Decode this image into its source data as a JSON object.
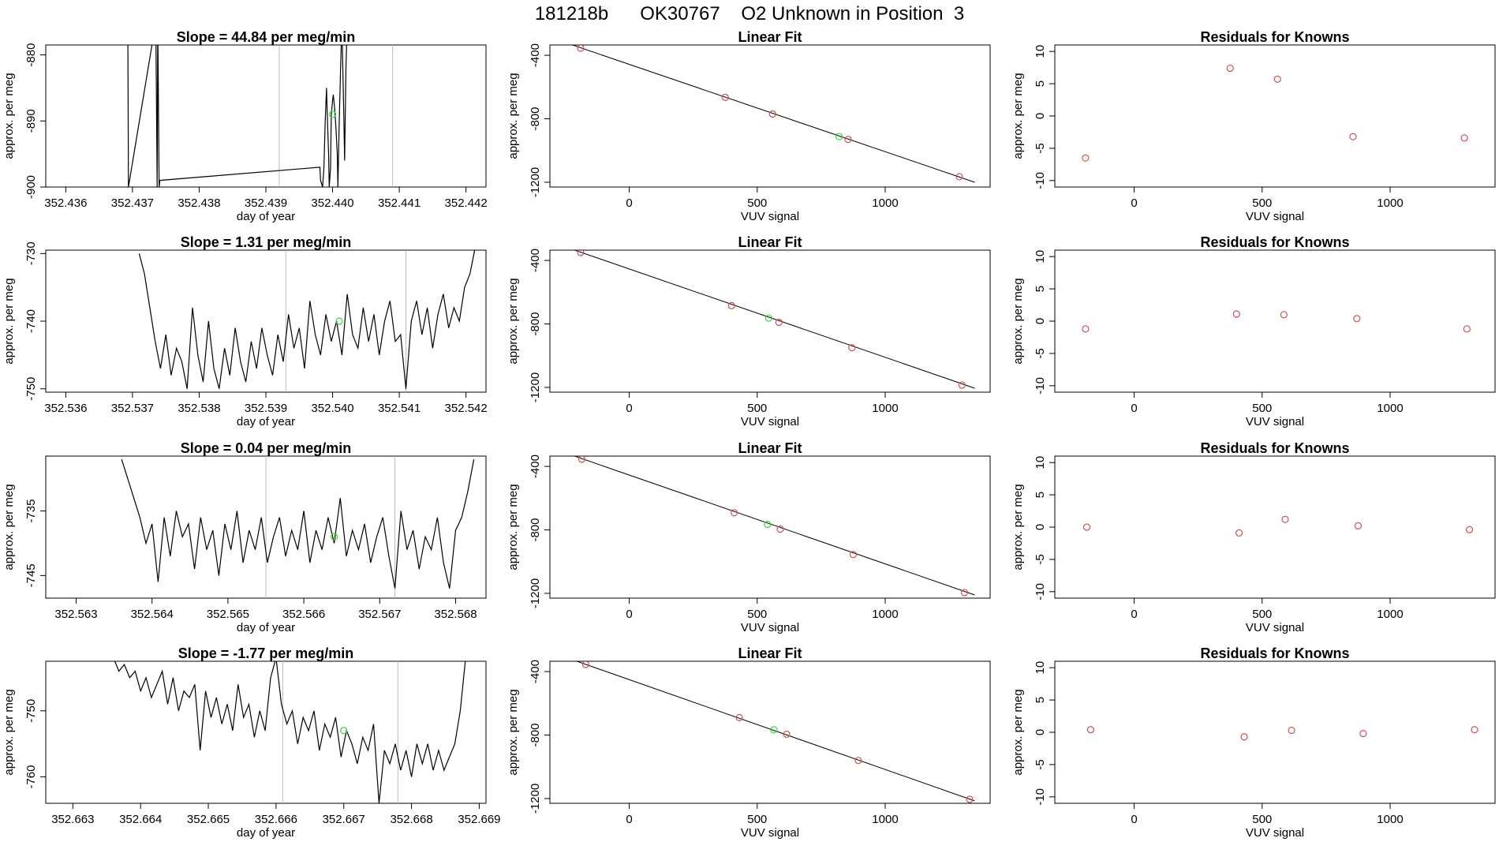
{
  "page": {
    "title": "181218b      OK30767    O2 Unknown in Position  3"
  },
  "colors": {
    "known_point": "#d05050",
    "unknown_point": "#33dd33",
    "line": "#000000",
    "reference_line": "#bbbbbb"
  },
  "chart_data": [
    {
      "type": "line",
      "title": "Slope =  44.84  per meg/min",
      "xlabel": "day of year",
      "ylabel": "approx. per meg",
      "xlim": [
        352.4357,
        352.4423
      ],
      "ylim": [
        -900,
        -878.5
      ],
      "xticks": [
        "352.436",
        "352.437",
        "352.438",
        "352.439",
        "352.440",
        "352.441",
        "352.442"
      ],
      "yticks": [
        "-880",
        "-890",
        "-900"
      ],
      "reference_lines_x": [
        352.4392,
        352.4409
      ],
      "unknown_point": {
        "x": 352.44,
        "y": -889
      },
      "series": [
        {
          "x": [
            352.43693,
            352.43694,
            352.43735,
            352.43737,
            352.43738,
            352.4374,
            352.43741,
            352.43981,
            352.43982,
            352.43985,
            352.43987,
            352.43989,
            352.43991,
            352.43992,
            352.43994,
            352.43995,
            352.43997,
            352.43998,
            352.44,
            352.44001,
            352.44003,
            352.44005,
            352.44007,
            352.44008,
            352.4401,
            352.44012,
            352.44014,
            352.44015,
            352.44017,
            352.44018,
            352.4402,
            352.44022
          ],
          "y": [
            -875,
            -900,
            -875,
            -900,
            -875,
            -900,
            -899,
            -897,
            -899,
            -900,
            -897,
            -890,
            -885,
            -889,
            -895,
            -900,
            -897,
            -889,
            -887,
            -886,
            -888,
            -891,
            -895,
            -900,
            -890,
            -882,
            -875,
            -880,
            -890,
            -896,
            -882,
            -875
          ]
        }
      ]
    },
    {
      "type": "scatter",
      "title": "Linear Fit",
      "xlabel": "VUV signal",
      "ylabel": "approx. per meg",
      "xlim": [
        -310,
        1410
      ],
      "ylim": [
        -1230,
        -335
      ],
      "xticks": [
        "0",
        "500",
        "1000"
      ],
      "yticks": [
        "-400",
        "-800",
        "-1200"
      ],
      "fit_line": {
        "x": [
          -240,
          1350
        ],
        "y": [
          -325,
          -1200
        ]
      },
      "points": {
        "x": [
          -190,
          375,
          560,
          855,
          1290
        ],
        "y": [
          -355,
          -665,
          -770,
          -930,
          -1165
        ]
      },
      "unknown_point": {
        "x": 820,
        "y": -912
      }
    },
    {
      "type": "scatter",
      "title": "Residuals for Knowns",
      "xlabel": "VUV signal",
      "ylabel": "approx. per meg",
      "xlim": [
        -310,
        1410
      ],
      "ylim": [
        -11,
        11
      ],
      "xticks": [
        "0",
        "500",
        "1000"
      ],
      "yticks": [
        "10",
        "5",
        "0",
        "-5",
        "-10"
      ],
      "points": {
        "x": [
          -190,
          375,
          560,
          855,
          1290
        ],
        "y": [
          -6.5,
          7.4,
          5.7,
          -3.2,
          -3.4
        ]
      }
    },
    {
      "type": "line",
      "title": "Slope =  1.31  per meg/min",
      "xlabel": "day of year",
      "ylabel": "approx. per meg",
      "xlim": [
        352.5357,
        352.5423
      ],
      "ylim": [
        -750.5,
        -729.5
      ],
      "xticks": [
        "352.536",
        "352.537",
        "352.538",
        "352.539",
        "352.540",
        "352.541",
        "352.542"
      ],
      "yticks": [
        "-730",
        "-740",
        "-750"
      ],
      "reference_lines_x": [
        352.5393,
        352.5411
      ],
      "unknown_point": {
        "x": 352.5401,
        "y": -740
      },
      "series": [
        {
          "x": [
            352.5371,
            352.53718,
            352.53726,
            352.53734,
            352.53742,
            352.5375,
            352.53758,
            352.53766,
            352.53774,
            352.53782,
            352.5379,
            352.53798,
            352.53806,
            352.53814,
            352.53822,
            352.5383,
            352.53838,
            352.53846,
            352.53854,
            352.53862,
            352.5387,
            352.53878,
            352.53886,
            352.53894,
            352.53902,
            352.5391,
            352.53918,
            352.53926,
            352.53934,
            352.53942,
            352.5395,
            352.53958,
            352.53966,
            352.53974,
            352.53982,
            352.5399,
            352.53998,
            352.54006,
            352.54014,
            352.54022,
            352.5403,
            352.54038,
            352.54046,
            352.54054,
            352.54062,
            352.5407,
            352.54078,
            352.54086,
            352.54094,
            352.54102,
            352.5411,
            352.54118,
            352.54126,
            352.54134,
            352.54142,
            352.5415,
            352.54158,
            352.54166,
            352.54174,
            352.54182,
            352.5419,
            352.54198,
            352.54206,
            352.54214
          ],
          "y": [
            -730,
            -733,
            -738,
            -743,
            -747,
            -742,
            -748,
            -744,
            -746,
            -750,
            -738,
            -745,
            -749,
            -740,
            -747,
            -750,
            -744,
            -748,
            -741,
            -746,
            -749,
            -743,
            -747,
            -741,
            -745,
            -748,
            -742,
            -746,
            -739,
            -744,
            -741,
            -747,
            -737,
            -742,
            -745,
            -739,
            -743,
            -740,
            -745,
            -736,
            -742,
            -744,
            -738,
            -743,
            -739,
            -745,
            -740,
            -737,
            -743,
            -742,
            -750,
            -740,
            -737,
            -742,
            -738,
            -744,
            -739,
            -736,
            -741,
            -738,
            -740,
            -735,
            -733,
            -729
          ]
        }
      ]
    },
    {
      "type": "scatter",
      "title": "Linear Fit",
      "xlabel": "VUV signal",
      "ylabel": "approx. per meg",
      "xlim": [
        -310,
        1410
      ],
      "ylim": [
        -1230,
        -335
      ],
      "xticks": [
        "0",
        "500",
        "1000"
      ],
      "yticks": [
        "-400",
        "-800",
        "-1200"
      ],
      "fit_line": {
        "x": [
          -240,
          1350
        ],
        "y": [
          -320,
          -1205
        ]
      },
      "points": {
        "x": [
          -190,
          400,
          585,
          870,
          1300
        ],
        "y": [
          -350,
          -685,
          -790,
          -950,
          -1185
        ]
      },
      "unknown_point": {
        "x": 545,
        "y": -763
      }
    },
    {
      "type": "scatter",
      "title": "Residuals for Knowns",
      "xlabel": "VUV signal",
      "ylabel": "approx. per meg",
      "xlim": [
        -310,
        1410
      ],
      "ylim": [
        -11,
        11
      ],
      "xticks": [
        "0",
        "500",
        "1000"
      ],
      "yticks": [
        "10",
        "5",
        "0",
        "-5",
        "-10"
      ],
      "points": {
        "x": [
          -190,
          400,
          585,
          870,
          1300
        ],
        "y": [
          -1.2,
          1.1,
          1.0,
          0.4,
          -1.2
        ]
      }
    },
    {
      "type": "line",
      "title": "Slope =  0.04  per meg/min",
      "xlabel": "day of year",
      "ylabel": "approx. per meg",
      "xlim": [
        352.5626,
        352.5684
      ],
      "ylim": [
        -748.5,
        -726.5
      ],
      "xticks": [
        "352.563",
        "352.564",
        "352.565",
        "352.566",
        "352.567",
        "352.568"
      ],
      "yticks": [
        "-735",
        "-745"
      ],
      "reference_lines_x": [
        352.5655,
        352.5672
      ],
      "unknown_point": {
        "x": 352.5664,
        "y": -739
      },
      "series": [
        {
          "x": [
            352.5636,
            352.56368,
            352.56376,
            352.56384,
            352.56392,
            352.564,
            352.56408,
            352.56416,
            352.56424,
            352.56432,
            352.5644,
            352.56448,
            352.56456,
            352.56464,
            352.56472,
            352.5648,
            352.56488,
            352.56496,
            352.56504,
            352.56512,
            352.5652,
            352.56528,
            352.56536,
            352.56544,
            352.56552,
            352.5656,
            352.56568,
            352.56576,
            352.56584,
            352.56592,
            352.566,
            352.56608,
            352.56616,
            352.56624,
            352.56632,
            352.5664,
            352.56648,
            352.56656,
            352.56664,
            352.56672,
            352.5668,
            352.56688,
            352.56696,
            352.56704,
            352.56712,
            352.5672,
            352.56728,
            352.56736,
            352.56744,
            352.56752,
            352.5676,
            352.56768,
            352.56776,
            352.56784,
            352.56792,
            352.568,
            352.56808,
            352.56816,
            352.56824
          ],
          "y": [
            -727,
            -730,
            -733,
            -736,
            -740,
            -737,
            -746,
            -736,
            -742,
            -735,
            -739,
            -737,
            -744,
            -736,
            -741,
            -738,
            -745,
            -737,
            -741,
            -735,
            -743,
            -738,
            -741,
            -736,
            -743,
            -739,
            -736,
            -742,
            -738,
            -741,
            -735,
            -743,
            -738,
            -741,
            -736,
            -740,
            -733,
            -742,
            -738,
            -741,
            -737,
            -743,
            -739,
            -736,
            -742,
            -747,
            -735,
            -741,
            -738,
            -744,
            -739,
            -741,
            -736,
            -743,
            -747,
            -738,
            -736,
            -732,
            -727
          ]
        }
      ]
    },
    {
      "type": "scatter",
      "title": "Linear Fit",
      "xlabel": "VUV signal",
      "ylabel": "approx. per meg",
      "xlim": [
        -310,
        1410
      ],
      "ylim": [
        -1230,
        -335
      ],
      "xticks": [
        "0",
        "500",
        "1000"
      ],
      "yticks": [
        "-400",
        "-800",
        "-1200"
      ],
      "fit_line": {
        "x": [
          -240,
          1350
        ],
        "y": [
          -320,
          -1210
        ]
      },
      "points": {
        "x": [
          -185,
          410,
          590,
          875,
          1310
        ],
        "y": [
          -355,
          -692,
          -795,
          -955,
          -1195
        ]
      },
      "unknown_point": {
        "x": 540,
        "y": -765
      }
    },
    {
      "type": "scatter",
      "title": "Residuals for Knowns",
      "xlabel": "VUV signal",
      "ylabel": "approx. per meg",
      "xlim": [
        -310,
        1410
      ],
      "ylim": [
        -11,
        11
      ],
      "xticks": [
        "0",
        "500",
        "1000"
      ],
      "yticks": [
        "10",
        "5",
        "0",
        "-5",
        "-10"
      ],
      "points": {
        "x": [
          -185,
          410,
          590,
          875,
          1310
        ],
        "y": [
          0.0,
          -0.9,
          1.2,
          0.2,
          -0.4
        ]
      }
    },
    {
      "type": "line",
      "title": "Slope =  -1.77  per meg/min",
      "xlabel": "day of year",
      "ylabel": "approx. per meg",
      "xlim": [
        352.6626,
        352.6691
      ],
      "ylim": [
        -764,
        -742.5
      ],
      "xticks": [
        "352.663",
        "352.664",
        "352.665",
        "352.666",
        "352.667",
        "352.668",
        "352.669"
      ],
      "yticks": [
        "-750",
        "-760"
      ],
      "reference_lines_x": [
        352.6661,
        352.6678
      ],
      "unknown_point": {
        "x": 352.667,
        "y": -753
      },
      "series": [
        {
          "x": [
            352.6636,
            352.66368,
            352.66376,
            352.66384,
            352.66392,
            352.664,
            352.66408,
            352.66416,
            352.66424,
            352.66432,
            352.6644,
            352.66448,
            352.66456,
            352.66464,
            352.66472,
            352.6648,
            352.66488,
            352.66496,
            352.66504,
            352.66512,
            352.6652,
            352.66528,
            352.66536,
            352.66544,
            352.66552,
            352.6656,
            352.66568,
            352.66576,
            352.66584,
            352.66592,
            352.666,
            352.66608,
            352.66616,
            352.66624,
            352.66632,
            352.6664,
            352.66648,
            352.66656,
            352.66664,
            352.66672,
            352.6668,
            352.66688,
            352.66696,
            352.66704,
            352.66712,
            352.6672,
            352.66728,
            352.66736,
            352.66744,
            352.66752,
            352.6676,
            352.66768,
            352.66776,
            352.66784,
            352.66792,
            352.668,
            352.66808,
            352.66816,
            352.66824,
            352.66832,
            352.6684,
            352.66848,
            352.66856,
            352.66864,
            352.66872,
            352.6688
          ],
          "y": [
            -742,
            -744,
            -743,
            -745,
            -744,
            -747,
            -745,
            -748,
            -746,
            -744,
            -749,
            -745,
            -750,
            -747,
            -748,
            -746,
            -756,
            -747,
            -751,
            -748,
            -752,
            -749,
            -753,
            -746,
            -751,
            -749,
            -754,
            -750,
            -753,
            -745,
            -742,
            -749,
            -752,
            -750,
            -755,
            -751,
            -753,
            -750,
            -756,
            -752,
            -754,
            -751,
            -757,
            -753,
            -755,
            -758,
            -754,
            -756,
            -752,
            -764,
            -756,
            -758,
            -755,
            -759,
            -756,
            -760,
            -755,
            -758,
            -755,
            -759,
            -756,
            -759,
            -757,
            -755,
            -750,
            -742
          ]
        }
      ]
    },
    {
      "type": "scatter",
      "title": "Linear Fit",
      "xlabel": "VUV signal",
      "ylabel": "approx. per meg",
      "xlim": [
        -310,
        1410
      ],
      "ylim": [
        -1230,
        -335
      ],
      "xticks": [
        "0",
        "500",
        "1000"
      ],
      "yticks": [
        "-400",
        "-800",
        "-1200"
      ],
      "fit_line": {
        "x": [
          -240,
          1350
        ],
        "y": [
          -315,
          -1215
        ]
      },
      "points": {
        "x": [
          -170,
          430,
          615,
          895,
          1330
        ],
        "y": [
          -355,
          -690,
          -795,
          -960,
          -1205
        ]
      },
      "unknown_point": {
        "x": 565,
        "y": -767
      }
    },
    {
      "type": "scatter",
      "title": "Residuals for Knowns",
      "xlabel": "VUV signal",
      "ylabel": "approx. per meg",
      "xlim": [
        -310,
        1410
      ],
      "ylim": [
        -11,
        11
      ],
      "xticks": [
        "0",
        "500",
        "1000"
      ],
      "yticks": [
        "10",
        "5",
        "0",
        "-5",
        "-10"
      ],
      "points": {
        "x": [
          -170,
          430,
          615,
          895,
          1330
        ],
        "y": [
          0.4,
          -0.7,
          0.3,
          -0.2,
          0.4
        ]
      }
    }
  ]
}
